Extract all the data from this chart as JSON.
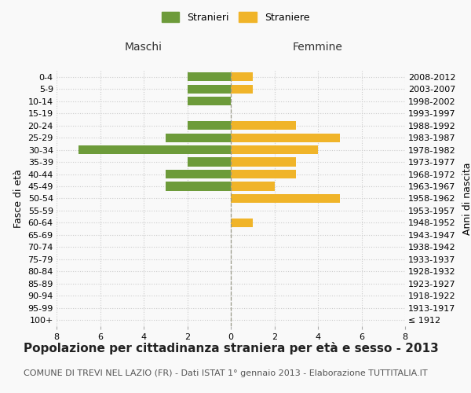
{
  "age_groups": [
    "100+",
    "95-99",
    "90-94",
    "85-89",
    "80-84",
    "75-79",
    "70-74",
    "65-69",
    "60-64",
    "55-59",
    "50-54",
    "45-49",
    "40-44",
    "35-39",
    "30-34",
    "25-29",
    "20-24",
    "15-19",
    "10-14",
    "5-9",
    "0-4"
  ],
  "birth_years": [
    "≤ 1912",
    "1913-1917",
    "1918-1922",
    "1923-1927",
    "1928-1932",
    "1933-1937",
    "1938-1942",
    "1943-1947",
    "1948-1952",
    "1953-1957",
    "1958-1962",
    "1963-1967",
    "1968-1972",
    "1973-1977",
    "1978-1982",
    "1983-1987",
    "1988-1992",
    "1993-1997",
    "1998-2002",
    "2003-2007",
    "2008-2012"
  ],
  "maschi": [
    0,
    0,
    0,
    0,
    0,
    0,
    0,
    0,
    0,
    0,
    0,
    3,
    3,
    2,
    7,
    3,
    2,
    0,
    2,
    2,
    2
  ],
  "femmine": [
    0,
    0,
    0,
    0,
    0,
    0,
    0,
    0,
    1,
    0,
    5,
    2,
    3,
    3,
    4,
    5,
    3,
    0,
    0,
    1,
    1
  ],
  "male_color": "#6d9b3a",
  "female_color": "#f0b429",
  "xlim": 8,
  "title": "Popolazione per cittadinanza straniera per età e sesso - 2013",
  "subtitle": "COMUNE DI TREVI NEL LAZIO (FR) - Dati ISTAT 1° gennaio 2013 - Elaborazione TUTTITALIA.IT",
  "legend_male": "Stranieri",
  "legend_female": "Straniere",
  "xlabel_left": "Maschi",
  "xlabel_right": "Femmine",
  "ylabel_left": "Fasce di età",
  "ylabel_right": "Anni di nascita",
  "bg_color": "#f9f9f9",
  "grid_color": "#cccccc",
  "title_fontsize": 11,
  "subtitle_fontsize": 8,
  "axis_label_fontsize": 9,
  "tick_fontsize": 8
}
